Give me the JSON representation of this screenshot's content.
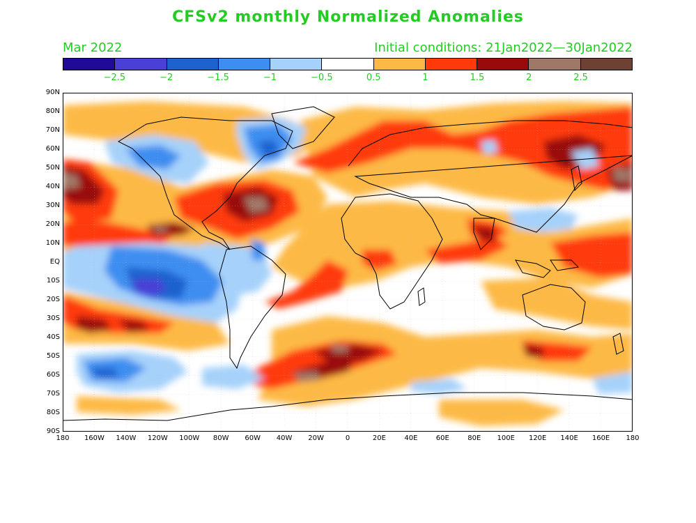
{
  "title": "CFSv2 monthly Normalized Anomalies",
  "subtitle_left": "Mar 2022",
  "subtitle_right": "Initial conditions: 21Jan2022—30Jan2022",
  "colorbar": {
    "colors": [
      "#1f0a9a",
      "#4a3fd6",
      "#1d62cf",
      "#3d8ef0",
      "#a6d1fa",
      "#ffffff",
      "#fdb945",
      "#ff3a0a",
      "#9a0a0a",
      "#a07868",
      "#6e4232"
    ],
    "labels": [
      "−2.5",
      "−2",
      "−1.5",
      "−1",
      "−0.5",
      "0.5",
      "1",
      "1.5",
      "2",
      "2.5"
    ]
  },
  "map": {
    "lat_labels": [
      "90N",
      "80N",
      "70N",
      "60N",
      "50N",
      "40N",
      "30N",
      "20N",
      "10N",
      "EQ",
      "10S",
      "20S",
      "30S",
      "40S",
      "50S",
      "60S",
      "70S",
      "80S",
      "90S"
    ],
    "lon_labels": [
      "180",
      "160W",
      "140W",
      "120W",
      "100W",
      "80W",
      "60W",
      "40W",
      "20W",
      "0",
      "20E",
      "40E",
      "60E",
      "80E",
      "100E",
      "120E",
      "140E",
      "160E",
      "180"
    ]
  }
}
